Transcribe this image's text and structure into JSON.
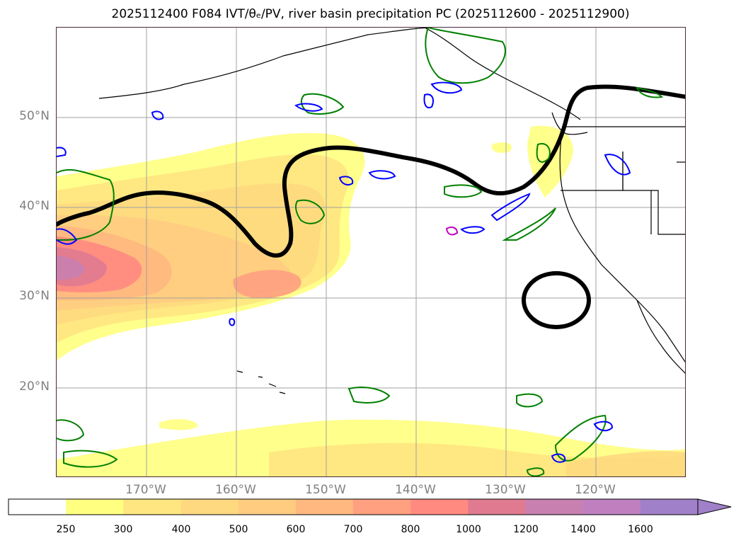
{
  "title": "2025112400 F084 IVT/θₑ/PV, river basin precipitation PC (2025112600 - 2025112900)",
  "map": {
    "lat_labels": [
      "50°N",
      "40°N",
      "30°N",
      "20°N"
    ],
    "lon_labels": [
      "170°W",
      "160°W",
      "150°W",
      "140°W",
      "130°W",
      "120°W"
    ],
    "gridline_lats": [
      50,
      40,
      30,
      20
    ],
    "gridline_lons": [
      -170,
      -160,
      -150,
      -140,
      -130,
      -120
    ],
    "lat_range": [
      10,
      60
    ],
    "lon_range": [
      -180,
      -110
    ]
  },
  "colorbar": {
    "labels": [
      "250",
      "300",
      "400",
      "500",
      "600",
      "700",
      "800",
      "1000",
      "1200",
      "1400",
      "1600"
    ],
    "levels": [
      250,
      300,
      400,
      500,
      600,
      700,
      800,
      1000,
      1200,
      1400,
      1600
    ],
    "colors": [
      "#ffffff",
      "#ffff80",
      "#ffe680",
      "#ffd980",
      "#ffcc80",
      "#ffb880",
      "#ffa080",
      "#ff8a80",
      "#e07a90",
      "#c880b0",
      "#c080c0",
      "#a080c8"
    ],
    "extend": "max"
  },
  "colors": {
    "contour_black": "#000000",
    "contour_green": "#008000",
    "contour_blue": "#0000ff",
    "contour_magenta": "#c000c0",
    "grid": "#a0a0a0"
  }
}
